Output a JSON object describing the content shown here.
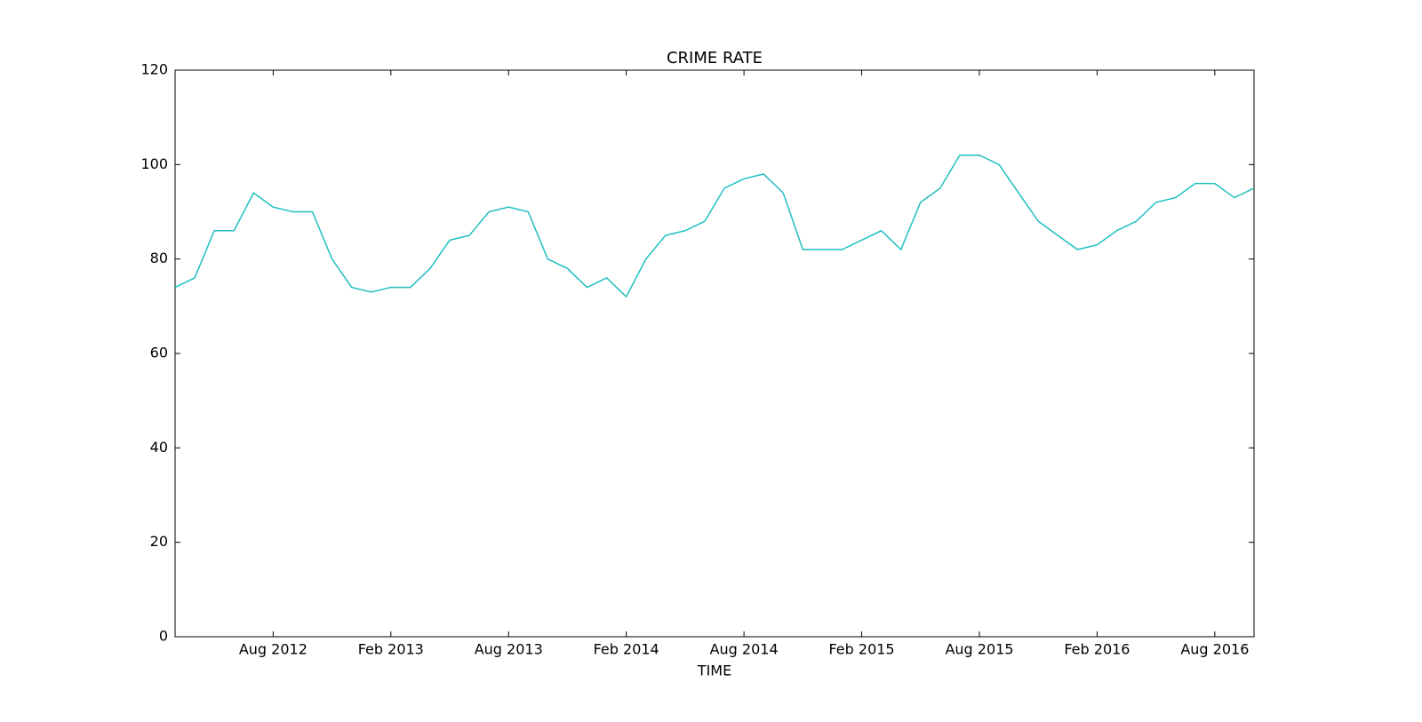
{
  "chart_data": {
    "type": "line",
    "title": "CRIME RATE",
    "x_label": "TIME",
    "x": [
      "2012-03",
      "2012-04",
      "2012-05",
      "2012-06",
      "2012-07",
      "2012-08",
      "2012-09",
      "2012-10",
      "2012-11",
      "2012-12",
      "2013-01",
      "2013-02",
      "2013-03",
      "2013-04",
      "2013-05",
      "2013-06",
      "2013-07",
      "2013-08",
      "2013-09",
      "2013-10",
      "2013-11",
      "2013-12",
      "2014-01",
      "2014-02",
      "2014-03",
      "2014-04",
      "2014-05",
      "2014-06",
      "2014-07",
      "2014-08",
      "2014-09",
      "2014-10",
      "2014-11",
      "2014-12",
      "2015-01",
      "2015-02",
      "2015-03",
      "2015-04",
      "2015-05",
      "2015-06",
      "2015-07",
      "2015-08",
      "2015-09",
      "2015-10",
      "2015-11",
      "2015-12",
      "2016-01",
      "2016-02",
      "2016-03",
      "2016-04",
      "2016-05",
      "2016-06",
      "2016-07",
      "2016-08",
      "2016-09",
      "2016-10"
    ],
    "series": [
      {
        "name": "crime rate",
        "color": "#1fbfbf",
        "values": [
          74,
          76,
          86,
          86,
          94,
          91,
          90,
          90,
          80,
          74,
          73,
          74,
          74,
          78,
          84,
          85,
          90,
          91,
          90,
          80,
          78,
          74,
          76,
          72,
          80,
          85,
          86,
          88,
          95,
          97,
          98,
          94,
          82,
          82,
          82,
          84,
          86,
          82,
          92,
          95,
          102,
          102,
          100,
          94,
          88,
          85,
          82,
          83,
          86,
          88,
          92,
          93,
          96,
          96,
          93,
          95
        ]
      }
    ],
    "xlim": [
      "2012-03",
      "2016-10"
    ],
    "xticks": [
      {
        "value": "2012-08",
        "label": "Aug 2012"
      },
      {
        "value": "2013-02",
        "label": "Feb 2013"
      },
      {
        "value": "2013-08",
        "label": "Aug 2013"
      },
      {
        "value": "2014-02",
        "label": "Feb 2014"
      },
      {
        "value": "2014-08",
        "label": "Aug 2014"
      },
      {
        "value": "2015-02",
        "label": "Feb 2015"
      },
      {
        "value": "2015-08",
        "label": "Aug 2015"
      },
      {
        "value": "2016-02",
        "label": "Feb 2016"
      },
      {
        "value": "2016-08",
        "label": "Aug 2016"
      }
    ],
    "ylim": [
      0,
      120
    ],
    "yticks": [
      0,
      20,
      40,
      60,
      80,
      100,
      120
    ],
    "grid": false
  }
}
